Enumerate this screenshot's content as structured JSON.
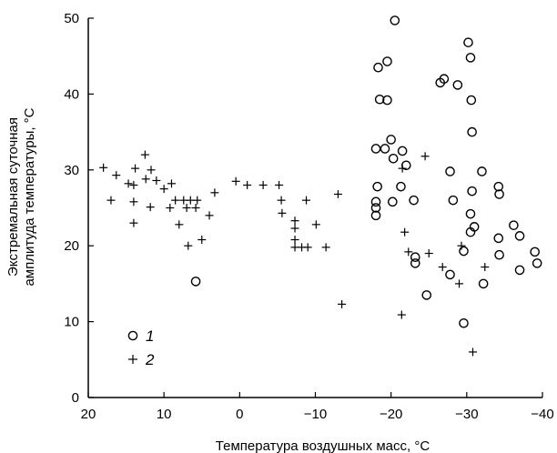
{
  "chart_data": {
    "type": "scatter",
    "xlabel": "Температура воздушных масс, °C",
    "ylabel_lines": [
      "Экстремальная суточная",
      "амплитуда температуры, °C"
    ],
    "xlim": [
      20,
      -40
    ],
    "ylim": [
      0,
      50
    ],
    "x_ticks": [
      20,
      10,
      0,
      -10,
      -20,
      -30,
      -40
    ],
    "x_tick_labels": [
      "20",
      "10",
      "0",
      "−10",
      "−20",
      "−30",
      "−40"
    ],
    "y_ticks": [
      0,
      10,
      20,
      30,
      40,
      50
    ],
    "y_tick_labels": [
      "0",
      "10",
      "20",
      "30",
      "40",
      "50"
    ],
    "grid": false,
    "legend_position": "bottom-left",
    "series": [
      {
        "name": "1",
        "marker": "circle",
        "points": [
          [
            -20.5,
            49.7
          ],
          [
            -30.2,
            46.8
          ],
          [
            -30.5,
            44.8
          ],
          [
            -19.5,
            44.3
          ],
          [
            -18.3,
            43.5
          ],
          [
            -27.0,
            42.0
          ],
          [
            -26.5,
            41.5
          ],
          [
            -28.8,
            41.2
          ],
          [
            -18.5,
            39.3
          ],
          [
            -19.5,
            39.2
          ],
          [
            -30.6,
            39.2
          ],
          [
            -30.7,
            35.0
          ],
          [
            -20.0,
            34.0
          ],
          [
            -18.0,
            32.8
          ],
          [
            -19.2,
            32.8
          ],
          [
            -21.5,
            32.5
          ],
          [
            -20.3,
            31.5
          ],
          [
            -22.0,
            30.6
          ],
          [
            -27.8,
            29.8
          ],
          [
            -32.0,
            29.8
          ],
          [
            -34.2,
            27.8
          ],
          [
            -18.2,
            27.8
          ],
          [
            -21.3,
            27.8
          ],
          [
            -30.7,
            27.2
          ],
          [
            -34.3,
            26.8
          ],
          [
            -23.0,
            26.0
          ],
          [
            -28.2,
            26.0
          ],
          [
            -18.0,
            25.8
          ],
          [
            -20.2,
            25.8
          ],
          [
            -18.0,
            25.0
          ],
          [
            -30.5,
            24.2
          ],
          [
            -18.0,
            24.0
          ],
          [
            -31.0,
            22.5
          ],
          [
            -36.2,
            22.7
          ],
          [
            -30.5,
            21.8
          ],
          [
            -34.2,
            21.0
          ],
          [
            -37.0,
            21.3
          ],
          [
            -39.0,
            19.2
          ],
          [
            -29.6,
            19.3
          ],
          [
            -23.2,
            18.5
          ],
          [
            -34.3,
            18.8
          ],
          [
            -23.2,
            17.7
          ],
          [
            -39.3,
            17.7
          ],
          [
            -27.8,
            16.2
          ],
          [
            -37.0,
            16.8
          ],
          [
            -32.2,
            15.0
          ],
          [
            5.8,
            15.3
          ],
          [
            -24.7,
            13.5
          ],
          [
            -29.6,
            9.8
          ]
        ]
      },
      {
        "name": "2",
        "marker": "plus",
        "points": [
          [
            18.0,
            30.3
          ],
          [
            16.3,
            29.3
          ],
          [
            12.5,
            32.0
          ],
          [
            11.7,
            30.0
          ],
          [
            13.8,
            30.2
          ],
          [
            14.7,
            28.2
          ],
          [
            14.0,
            28.0
          ],
          [
            12.4,
            28.8
          ],
          [
            11.0,
            28.6
          ],
          [
            17.0,
            26.0
          ],
          [
            14.0,
            25.8
          ],
          [
            10.0,
            27.5
          ],
          [
            9.0,
            28.2
          ],
          [
            8.5,
            26.0
          ],
          [
            7.4,
            26.0
          ],
          [
            6.5,
            26.0
          ],
          [
            5.6,
            26.0
          ],
          [
            9.2,
            25.0
          ],
          [
            11.8,
            25.1
          ],
          [
            7.0,
            25.0
          ],
          [
            5.8,
            25.0
          ],
          [
            8.0,
            22.8
          ],
          [
            14.0,
            23.0
          ],
          [
            3.3,
            27.0
          ],
          [
            0.5,
            28.5
          ],
          [
            -1.0,
            28.0
          ],
          [
            -3.1,
            28.0
          ],
          [
            -5.2,
            28.0
          ],
          [
            -5.5,
            26.0
          ],
          [
            -8.8,
            26.0
          ],
          [
            -13.0,
            26.8
          ],
          [
            -5.6,
            24.3
          ],
          [
            -7.3,
            23.3
          ],
          [
            -7.3,
            22.3
          ],
          [
            -10.1,
            22.8
          ],
          [
            -7.3,
            20.8
          ],
          [
            -7.3,
            19.8
          ],
          [
            -8.2,
            19.8
          ],
          [
            -9.0,
            19.8
          ],
          [
            -11.4,
            19.8
          ],
          [
            4.0,
            24.0
          ],
          [
            6.8,
            20.0
          ],
          [
            5.0,
            20.8
          ],
          [
            -13.5,
            12.3
          ],
          [
            -21.8,
            21.8
          ],
          [
            -22.3,
            19.2
          ],
          [
            -24.5,
            31.8
          ],
          [
            -21.5,
            30.2
          ],
          [
            -25.0,
            19.0
          ],
          [
            -26.8,
            17.2
          ],
          [
            -29.0,
            15.0
          ],
          [
            -29.3,
            20.0
          ],
          [
            -32.4,
            17.2
          ],
          [
            -30.8,
            6.0
          ],
          [
            -21.4,
            10.9
          ]
        ]
      }
    ]
  }
}
